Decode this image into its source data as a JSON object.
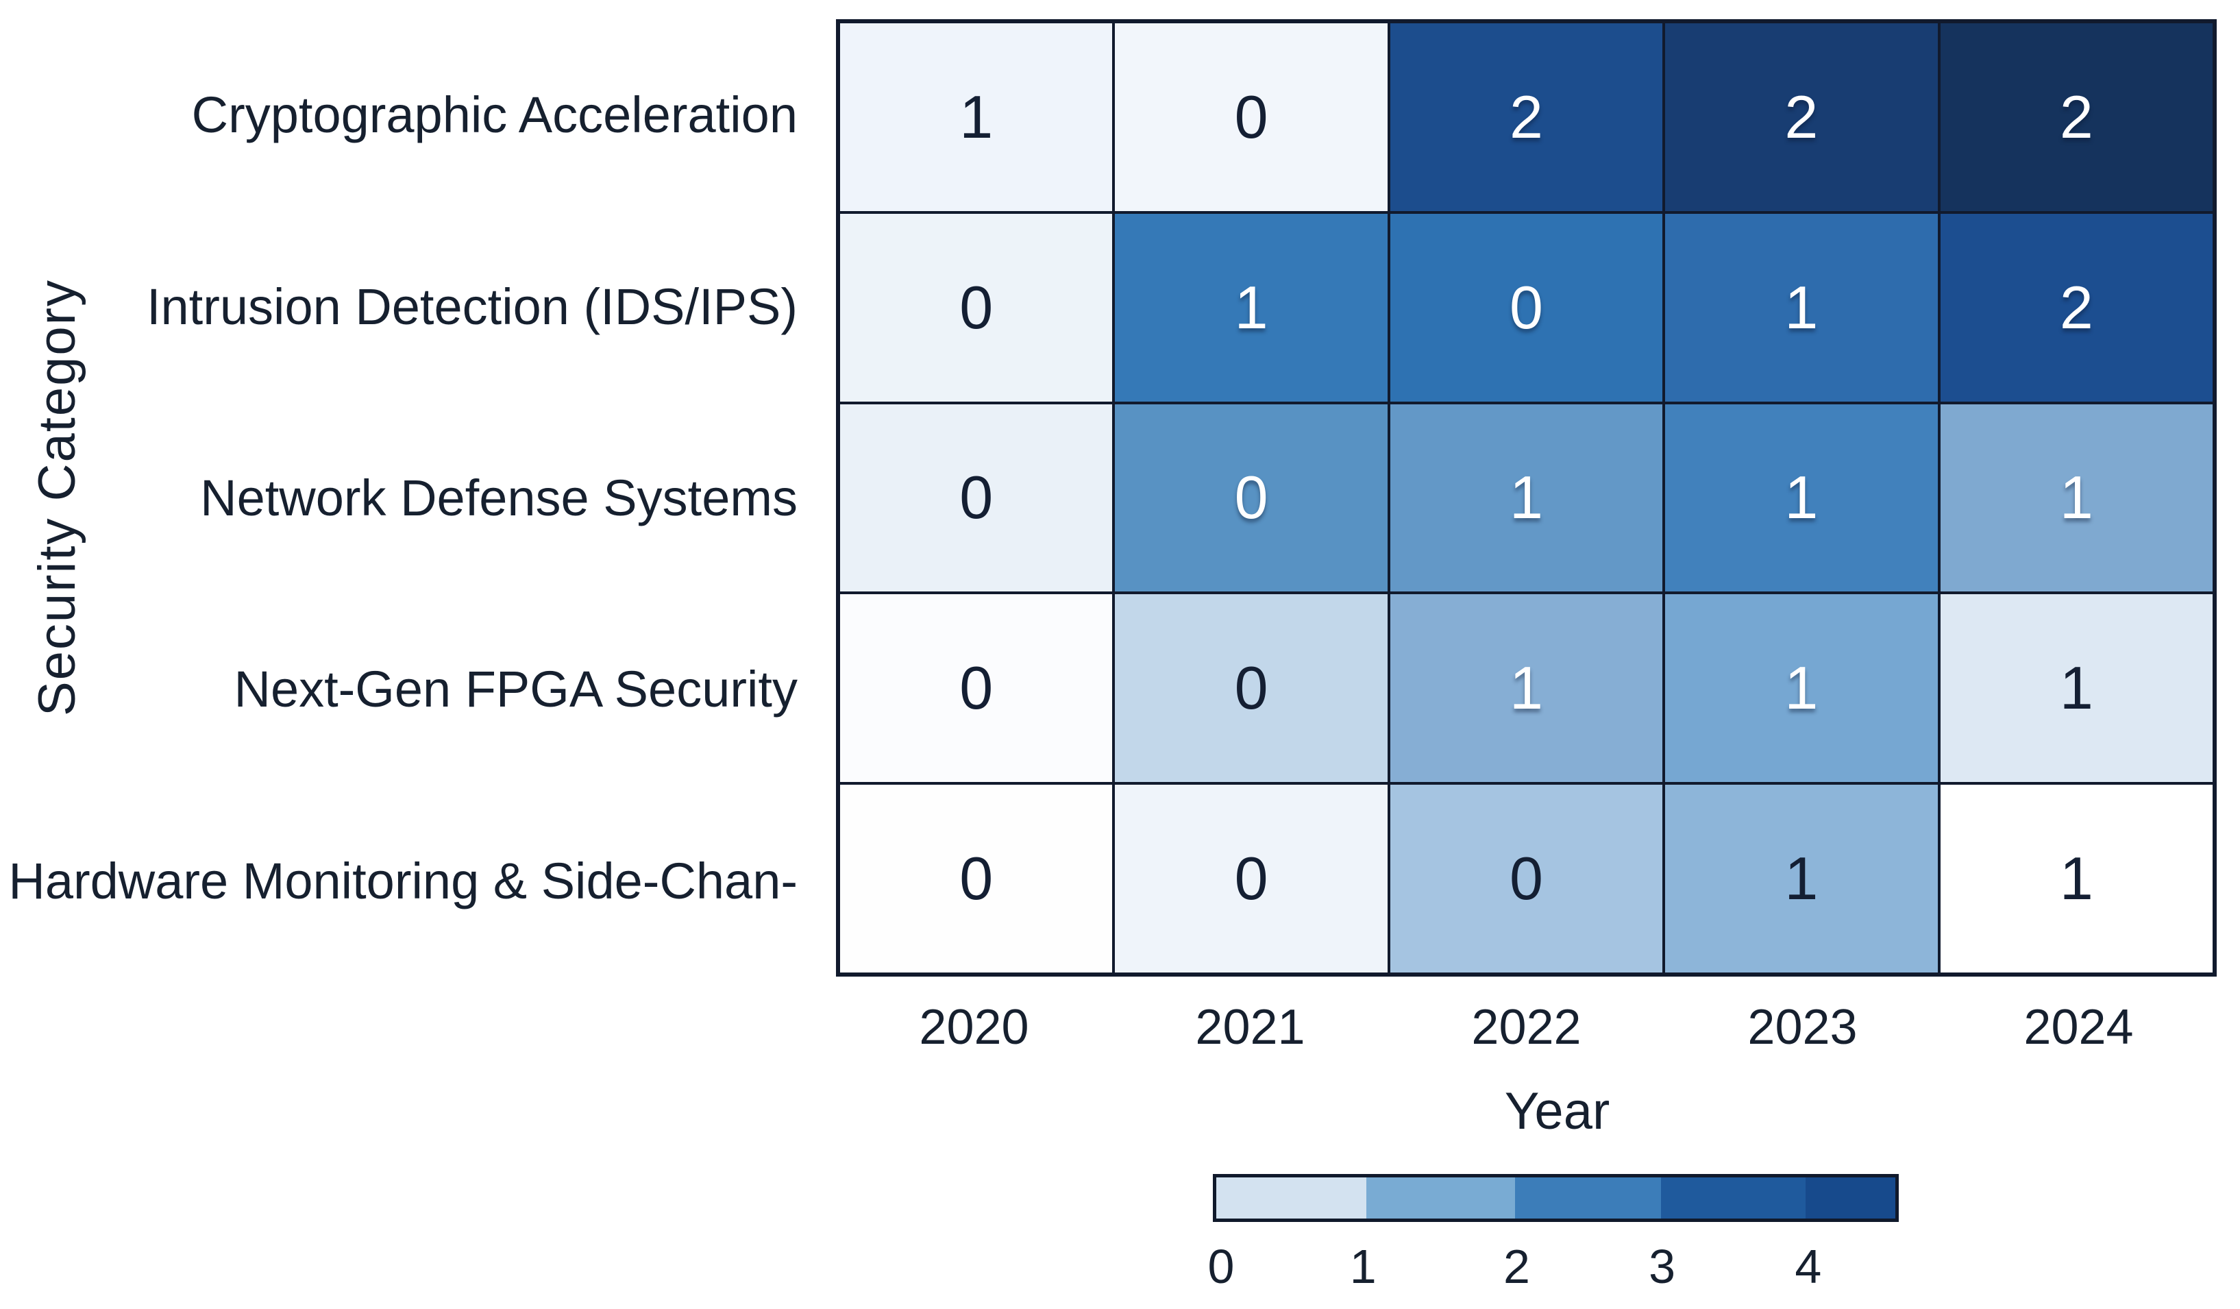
{
  "chart_data": {
    "type": "heatmap",
    "xlabel": "Year",
    "ylabel": "Security Category",
    "columns": [
      "2020",
      "2021",
      "2022",
      "2023",
      "2024"
    ],
    "rows": [
      "Cryptographic Acceleration",
      "Intrusion Detection (IDS/IPS)",
      "Network Defense Systems",
      "Next-Gen FPGA Security",
      "Hardware Monitoring & Side-Chan-"
    ],
    "values": [
      [
        1,
        0,
        2,
        2,
        2
      ],
      [
        0,
        1,
        0,
        1,
        2
      ],
      [
        0,
        0,
        1,
        1,
        1
      ],
      [
        0,
        0,
        1,
        1,
        1
      ],
      [
        0,
        0,
        0,
        1,
        1
      ]
    ],
    "cell_colors": [
      [
        "#eff4fb",
        "#f2f6fb",
        "#1c4d8d",
        "#183d72",
        "#15335d"
      ],
      [
        "#edf3f9",
        "#3579b7",
        "#2e72b2",
        "#2e6cad",
        "#1c4e90"
      ],
      [
        "#eaf1f8",
        "#5892c3",
        "#6398c7",
        "#4181bc",
        "#7fa9d0"
      ],
      [
        "#fbfcfe",
        "#c2d7ea",
        "#86aed4",
        "#76a7d2",
        "#dde8f3"
      ],
      [
        "#fefefe",
        "#eff4fa",
        "#a5c4e1",
        "#8db5d9",
        "#ffffff"
      ]
    ],
    "cell_text_colors": [
      [
        "dark",
        "dark",
        "light",
        "light",
        "light"
      ],
      [
        "dark",
        "light",
        "light",
        "light",
        "light"
      ],
      [
        "dark",
        "light",
        "light",
        "light",
        "light"
      ],
      [
        "dark",
        "dark",
        "light",
        "light",
        "dark"
      ],
      [
        "dark",
        "dark",
        "dark",
        "dark",
        "dark"
      ]
    ],
    "value_range": [
      0,
      4
    ],
    "grid_on": true,
    "legend_position": "bottom",
    "colorbar": {
      "ticks": [
        "0",
        "1",
        "2",
        "3",
        "4"
      ],
      "tick_positions_pct": [
        1.2,
        21.9,
        44.3,
        65.5,
        86.8
      ],
      "segment_colors": [
        "#d3e2f0",
        "#79abd3",
        "#3c7db9",
        "#1f5a9d",
        "#174a8c"
      ],
      "segment_widths_pct": [
        22.1,
        21.9,
        21.5,
        21.3,
        13.2
      ]
    },
    "palette": {
      "grid_line": "#111a2d",
      "dark_text": "#141f33",
      "light_text": "#ffffff",
      "background": "#ffffff"
    }
  }
}
